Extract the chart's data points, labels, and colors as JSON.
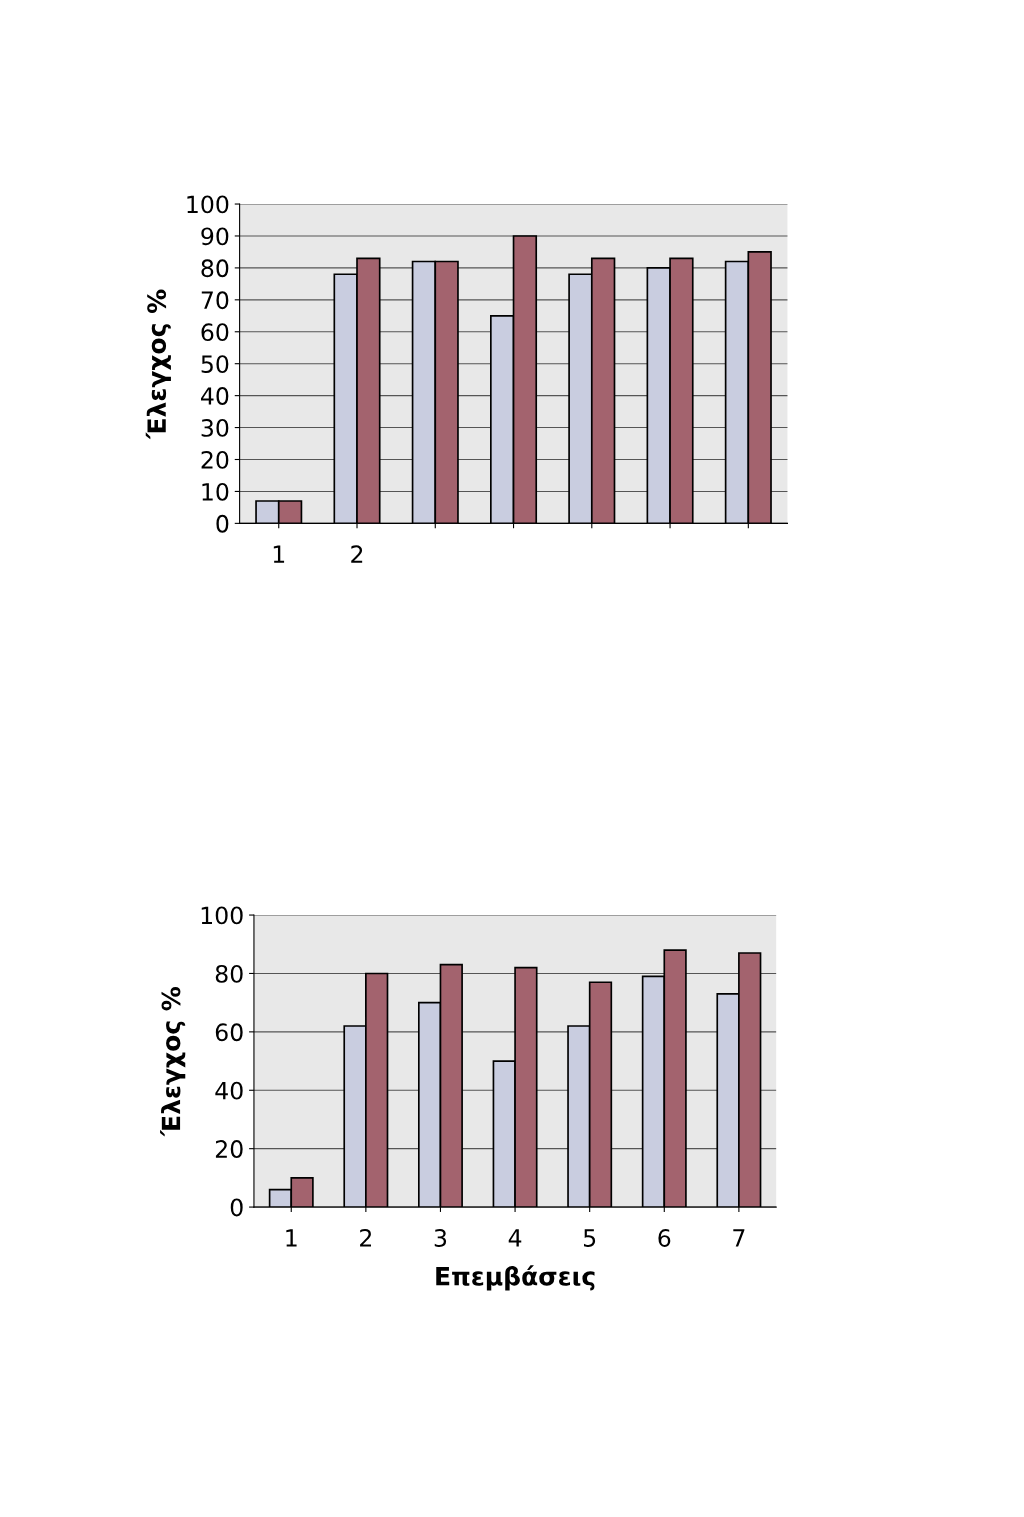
{
  "chart_data": [
    {
      "type": "bar",
      "ylabel": "Έλεγχος %",
      "categories": [
        "1",
        "2",
        null,
        null,
        null,
        null,
        null
      ],
      "series": [
        {
          "color": "#c9cde0",
          "values": [
            7,
            78,
            82,
            65,
            78,
            80,
            82
          ]
        },
        {
          "color": "#a3636e",
          "values": [
            7,
            83,
            82,
            90,
            83,
            83,
            85
          ]
        }
      ],
      "ylim": [
        0,
        100
      ],
      "yticks": [
        0,
        10,
        20,
        30,
        40,
        50,
        60,
        70,
        80,
        90,
        100
      ],
      "grid": "y"
    },
    {
      "type": "bar",
      "ylabel": "Έλεγχος %",
      "xlabel": "Επεμβάσεις",
      "categories": [
        "1",
        "2",
        "3",
        "4",
        "5",
        "6",
        "7"
      ],
      "series": [
        {
          "color": "#c9cde0",
          "values": [
            6,
            62,
            70,
            50,
            62,
            79,
            73
          ]
        },
        {
          "color": "#a3636e",
          "values": [
            10,
            80,
            83,
            82,
            77,
            88,
            87
          ]
        }
      ],
      "ylim": [
        0,
        100
      ],
      "yticks": [
        0,
        20,
        40,
        60,
        80,
        100
      ],
      "grid": "y"
    }
  ]
}
